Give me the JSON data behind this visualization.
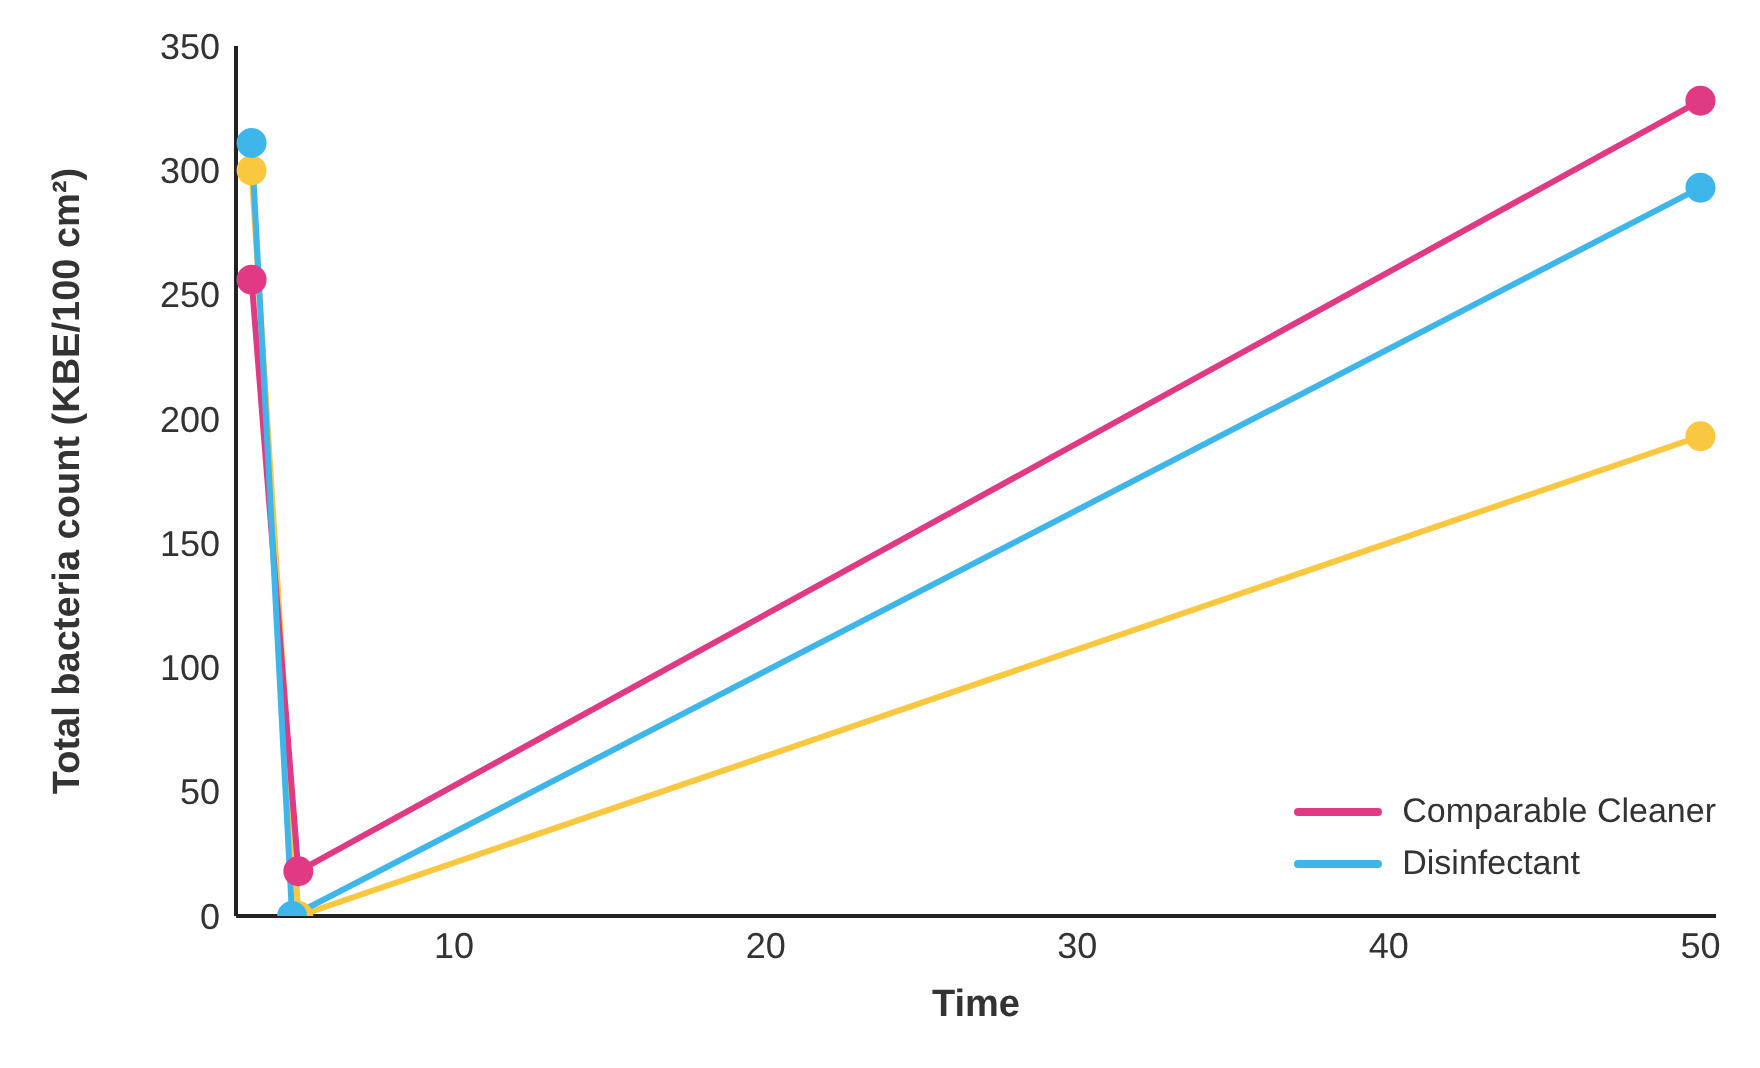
{
  "chart_data": {
    "type": "line",
    "xlabel": "Time",
    "ylabel": "Total bacteria count (KBE/100 cm²)",
    "xlim": [
      3,
      50.5
    ],
    "xticks": [
      10,
      20,
      30,
      40,
      50
    ],
    "ylim": [
      0,
      350
    ],
    "yticks": [
      0,
      50,
      100,
      150,
      200,
      250,
      300,
      350
    ],
    "grid": false,
    "legend": "bottom right",
    "marker": "circle",
    "line_style": "solid",
    "series": [
      {
        "color": "#f9c740",
        "x": [
          3.5,
          5,
          50
        ],
        "values": [
          300,
          0,
          193
        ]
      },
      {
        "name": "Comparable Cleaner",
        "color": "#e03a84",
        "x": [
          3.5,
          5,
          50
        ],
        "values": [
          256,
          18,
          328
        ]
      },
      {
        "name": "Disinfectant",
        "color": "#3fb6ea",
        "x": [
          3.5,
          4.8,
          50
        ],
        "values": [
          311,
          0,
          293
        ]
      }
    ]
  }
}
